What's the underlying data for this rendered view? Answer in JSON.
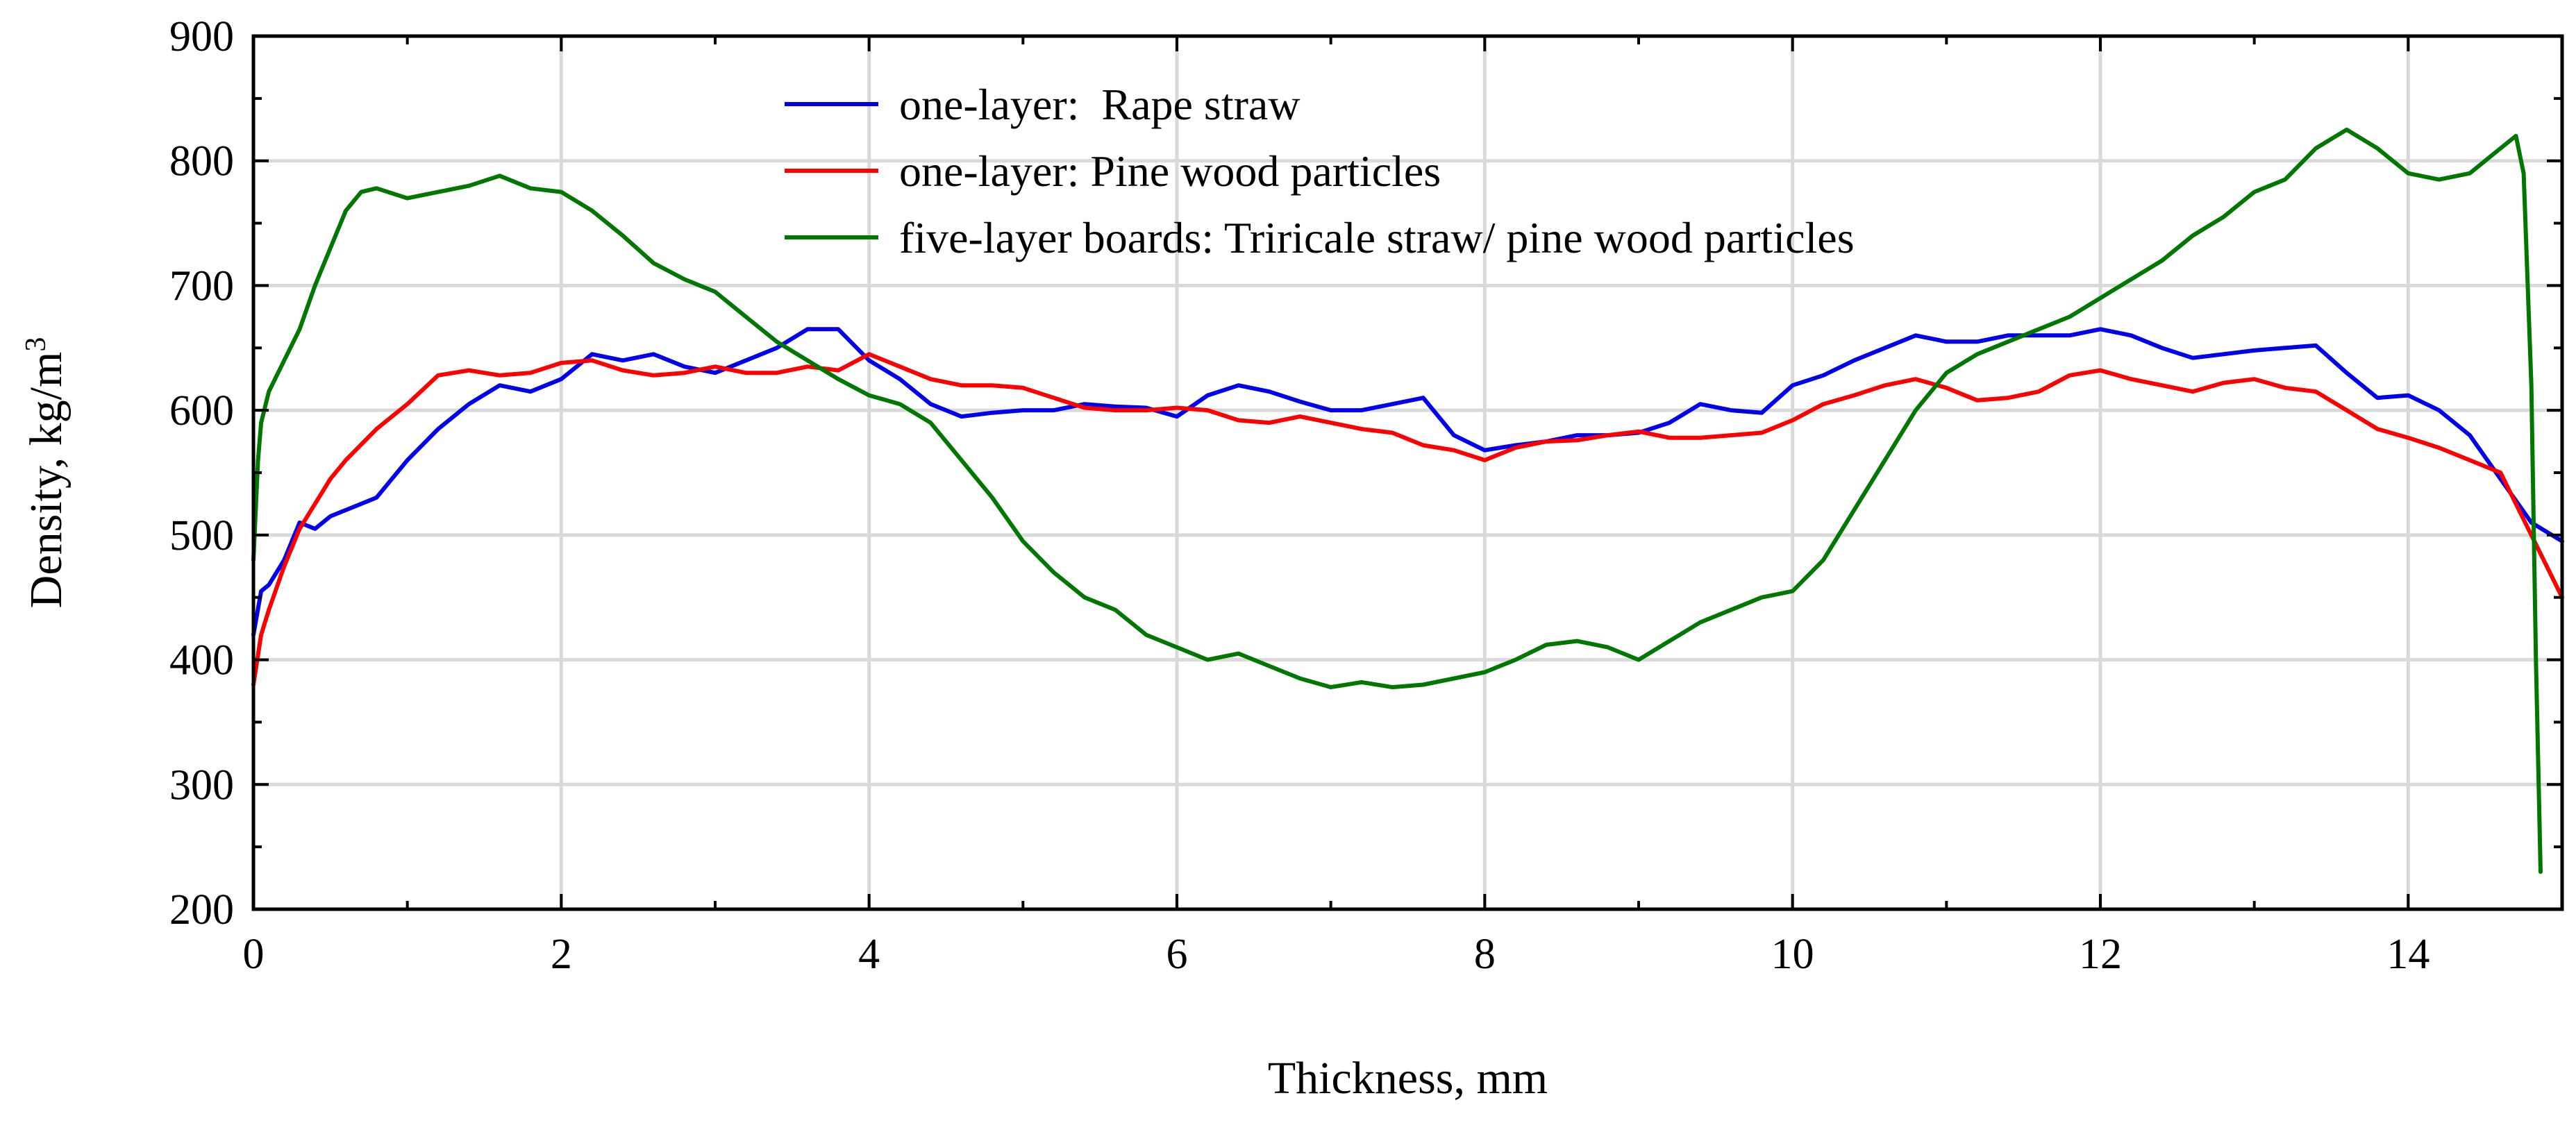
{
  "chart_data": {
    "type": "line",
    "title": "",
    "xlabel": "Thickness, mm",
    "ylabel": "Density, kg/m",
    "ylabel_superscript": "3",
    "xlim": [
      0,
      15
    ],
    "ylim": [
      200,
      900
    ],
    "x_ticks": [
      0,
      2,
      4,
      6,
      8,
      10,
      12,
      14
    ],
    "x_tick_labels": [
      "0",
      "2",
      "4",
      "6",
      "8",
      "10",
      "12",
      "14"
    ],
    "y_ticks": [
      200,
      300,
      400,
      500,
      600,
      700,
      800,
      900
    ],
    "y_tick_labels": [
      "200",
      "300",
      "400",
      "500",
      "600",
      "700",
      "800",
      "900"
    ],
    "grid": true,
    "legend_placement": "top-center",
    "series": [
      {
        "name": "one-layer:  Rape straw",
        "color": "#0000ee",
        "x": [
          0,
          0.05,
          0.1,
          0.2,
          0.3,
          0.4,
          0.5,
          0.6,
          0.8,
          1.0,
          1.2,
          1.4,
          1.6,
          1.8,
          2.0,
          2.2,
          2.4,
          2.6,
          2.8,
          3.0,
          3.2,
          3.4,
          3.6,
          3.8,
          4.0,
          4.2,
          4.4,
          4.6,
          4.8,
          5.0,
          5.2,
          5.4,
          5.6,
          5.8,
          6.0,
          6.2,
          6.4,
          6.6,
          6.8,
          7.0,
          7.2,
          7.4,
          7.6,
          7.8,
          8.0,
          8.2,
          8.4,
          8.6,
          8.8,
          9.0,
          9.2,
          9.4,
          9.6,
          9.8,
          10.0,
          10.2,
          10.4,
          10.6,
          10.8,
          11.0,
          11.2,
          11.4,
          11.6,
          11.8,
          12.0,
          12.2,
          12.4,
          12.6,
          12.8,
          13.0,
          13.2,
          13.4,
          13.6,
          13.8,
          14.0,
          14.2,
          14.4,
          14.6,
          14.8,
          15.0
        ],
        "y": [
          420,
          455,
          460,
          480,
          510,
          505,
          515,
          520,
          530,
          560,
          585,
          605,
          620,
          615,
          625,
          645,
          640,
          645,
          635,
          630,
          640,
          650,
          665,
          665,
          640,
          625,
          605,
          595,
          598,
          600,
          600,
          605,
          603,
          602,
          595,
          612,
          620,
          615,
          607,
          600,
          600,
          605,
          610,
          580,
          568,
          572,
          575,
          580,
          580,
          582,
          590,
          605,
          600,
          598,
          620,
          628,
          640,
          650,
          660,
          655,
          655,
          660,
          660,
          660,
          665,
          660,
          650,
          642,
          645,
          648,
          650,
          652,
          630,
          610,
          612,
          600,
          580,
          545,
          510,
          495
        ]
      },
      {
        "name": "one-layer: Pine wood particles",
        "color": "#ff0000",
        "x": [
          0,
          0.05,
          0.1,
          0.2,
          0.3,
          0.4,
          0.5,
          0.6,
          0.8,
          1.0,
          1.2,
          1.4,
          1.6,
          1.8,
          2.0,
          2.2,
          2.4,
          2.6,
          2.8,
          3.0,
          3.2,
          3.4,
          3.6,
          3.8,
          4.0,
          4.2,
          4.4,
          4.6,
          4.8,
          5.0,
          5.2,
          5.4,
          5.6,
          5.8,
          6.0,
          6.2,
          6.4,
          6.6,
          6.8,
          7.0,
          7.2,
          7.4,
          7.6,
          7.8,
          8.0,
          8.2,
          8.4,
          8.6,
          8.8,
          9.0,
          9.2,
          9.4,
          9.6,
          9.8,
          10.0,
          10.2,
          10.4,
          10.6,
          10.8,
          11.0,
          11.2,
          11.4,
          11.6,
          11.8,
          12.0,
          12.2,
          12.4,
          12.6,
          12.8,
          13.0,
          13.2,
          13.4,
          13.6,
          13.8,
          14.0,
          14.2,
          14.4,
          14.6,
          14.8,
          15.0
        ],
        "y": [
          380,
          420,
          440,
          475,
          505,
          525,
          545,
          560,
          585,
          605,
          628,
          632,
          628,
          630,
          638,
          640,
          632,
          628,
          630,
          635,
          630,
          630,
          635,
          632,
          645,
          635,
          625,
          620,
          620,
          618,
          610,
          602,
          600,
          600,
          602,
          600,
          592,
          590,
          595,
          590,
          585,
          582,
          572,
          568,
          560,
          570,
          575,
          576,
          580,
          583,
          578,
          578,
          580,
          582,
          592,
          605,
          612,
          620,
          625,
          618,
          608,
          610,
          615,
          628,
          632,
          625,
          620,
          615,
          622,
          625,
          618,
          615,
          600,
          585,
          578,
          570,
          560,
          550,
          500,
          450
        ]
      },
      {
        "name": "five-layer boards: Triricale straw/ pine wood particles",
        "color": "#007700",
        "x": [
          0,
          0.03,
          0.05,
          0.1,
          0.2,
          0.3,
          0.4,
          0.5,
          0.6,
          0.7,
          0.8,
          1.0,
          1.2,
          1.4,
          1.6,
          1.8,
          2.0,
          2.2,
          2.4,
          2.6,
          2.8,
          3.0,
          3.2,
          3.4,
          3.6,
          3.8,
          4.0,
          4.2,
          4.4,
          4.6,
          4.8,
          5.0,
          5.2,
          5.4,
          5.6,
          5.8,
          6.0,
          6.2,
          6.4,
          6.6,
          6.8,
          7.0,
          7.2,
          7.4,
          7.6,
          7.8,
          8.0,
          8.2,
          8.4,
          8.6,
          8.8,
          9.0,
          9.2,
          9.4,
          9.6,
          9.8,
          10.0,
          10.2,
          10.4,
          10.6,
          10.8,
          11.0,
          11.2,
          11.4,
          11.6,
          11.8,
          12.0,
          12.2,
          12.4,
          12.6,
          12.8,
          13.0,
          13.2,
          13.4,
          13.6,
          13.8,
          14.0,
          14.2,
          14.4,
          14.6,
          14.7,
          14.75,
          14.8,
          14.83,
          14.86
        ],
        "y": [
          480,
          560,
          590,
          615,
          640,
          665,
          700,
          730,
          760,
          775,
          778,
          770,
          775,
          780,
          788,
          778,
          775,
          760,
          740,
          718,
          705,
          695,
          675,
          655,
          640,
          625,
          612,
          605,
          590,
          560,
          530,
          495,
          470,
          450,
          440,
          420,
          410,
          400,
          405,
          395,
          385,
          378,
          382,
          378,
          380,
          385,
          390,
          400,
          412,
          415,
          410,
          400,
          415,
          430,
          440,
          450,
          455,
          480,
          520,
          560,
          600,
          630,
          645,
          655,
          665,
          675,
          690,
          705,
          720,
          740,
          755,
          775,
          785,
          810,
          825,
          810,
          790,
          785,
          790,
          810,
          820,
          790,
          620,
          400,
          230
        ]
      }
    ]
  }
}
